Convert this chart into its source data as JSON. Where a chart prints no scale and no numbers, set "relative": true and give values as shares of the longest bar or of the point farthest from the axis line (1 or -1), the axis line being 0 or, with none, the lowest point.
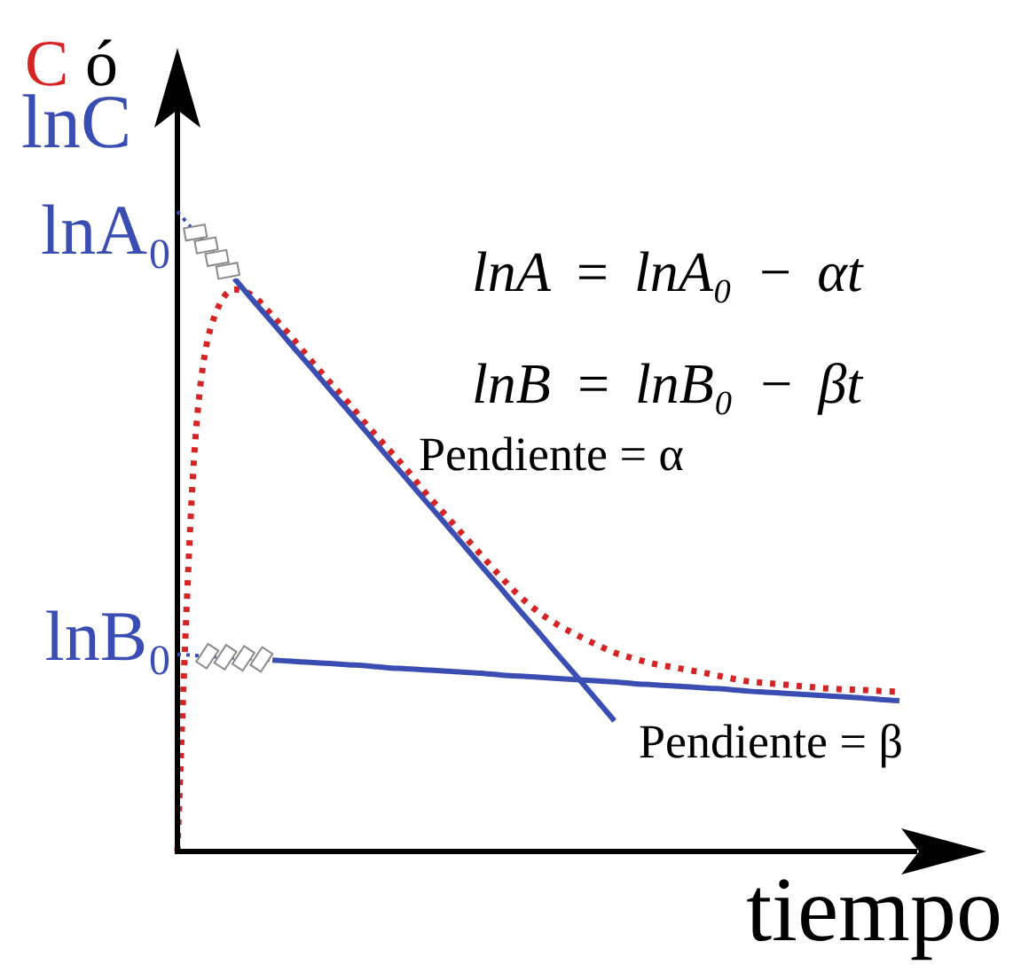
{
  "chart_data": {
    "type": "line",
    "relative": true,
    "tick_labels": false,
    "marker": "none",
    "xlabel": "tiempo",
    "ylabel": "C ó lnC",
    "categories": [
      null,
      null,
      null,
      null,
      null,
      null,
      null,
      null,
      null,
      null,
      null,
      null,
      null,
      null,
      null,
      null,
      null,
      null,
      null,
      null,
      null,
      null,
      null,
      null,
      null,
      null,
      null,
      null,
      null,
      null,
      null,
      null,
      null,
      null,
      null,
      null,
      null,
      null,
      null
    ],
    "series": [
      {
        "color": "#d62424",
        "line_style": "dotted",
        "values": [
          0,
          0.743,
          0.938,
          0.981,
          0.969,
          0.935,
          0.898,
          0.858,
          0.82,
          0.783,
          0.743,
          0.706,
          0.669,
          0.628,
          0.591,
          0.554,
          0.517,
          0.48,
          0.446,
          0.418,
          0.396,
          0.378,
          0.362,
          0.347,
          0.337,
          0.328,
          0.322,
          0.316,
          0.31,
          0.303,
          0.297,
          0.294,
          0.291,
          0.288,
          0.285,
          0.283,
          0.282,
          0.28,
          0.279
        ]
      },
      {
        "color": "#3a4db3",
        "line_style": "solid",
        "values": [
          null,
          null,
          null,
          1.0,
          0.961,
          0.923,
          0.884,
          0.846,
          0.807,
          0.769,
          0.73,
          0.691,
          0.653,
          0.614,
          0.576,
          0.537,
          0.498,
          0.46,
          0.421,
          0.383,
          0.344,
          0.306,
          0.267,
          0.228,
          null,
          null,
          null,
          null,
          null,
          null,
          null,
          null,
          null,
          null,
          null,
          null,
          null,
          null,
          null
        ]
      },
      {
        "color": "#3a4db3",
        "line_style": "solid",
        "values": [
          null,
          null,
          null,
          null,
          null,
          0.334,
          0.332,
          0.33,
          0.328,
          0.326,
          0.324,
          0.321,
          0.319,
          0.317,
          0.315,
          0.313,
          0.311,
          0.308,
          0.306,
          0.304,
          0.302,
          0.3,
          0.298,
          0.296,
          0.293,
          0.291,
          0.289,
          0.287,
          0.285,
          0.283,
          0.28,
          0.278,
          0.276,
          0.274,
          0.272,
          0.27,
          0.268,
          0.265,
          0.263
        ]
      }
    ],
    "annotations": [
      "lnA₀",
      "lnB₀",
      "lnA = lnA₀ − αt",
      "lnB = lnB₀ − βt",
      "Pendiente = α",
      "Pendiente = β"
    ]
  }
}
